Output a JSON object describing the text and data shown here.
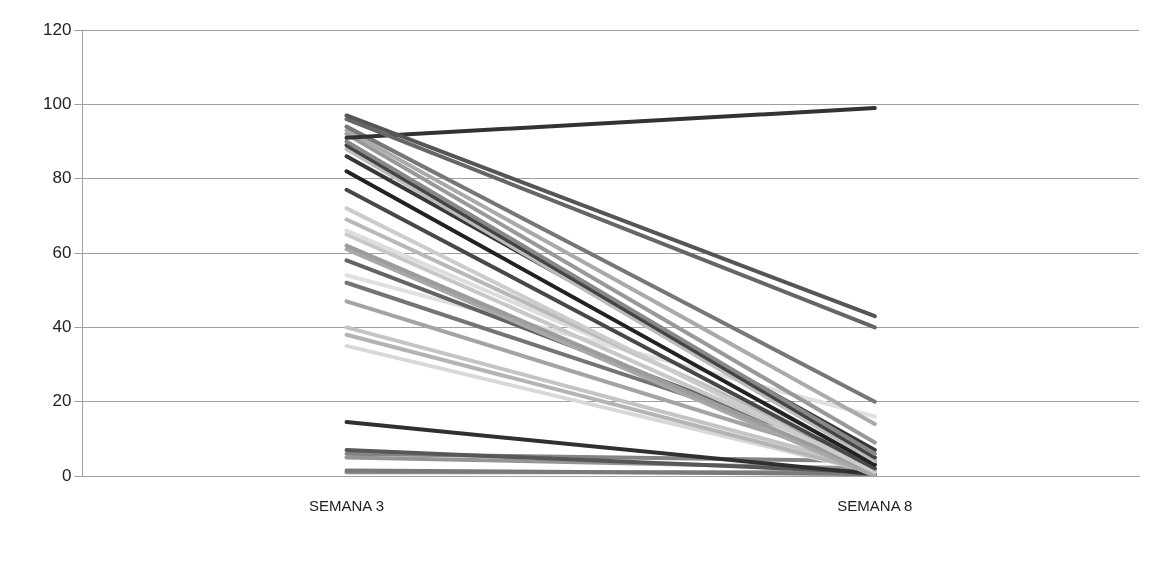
{
  "chart_data": {
    "type": "line",
    "categories": [
      "SEMANA 3",
      "SEMANA 8"
    ],
    "ylim": [
      0,
      120
    ],
    "yticks": [
      0,
      20,
      40,
      60,
      80,
      100,
      120
    ],
    "grid": "y",
    "legend": false,
    "marker": "none",
    "line_style": "solid",
    "series": [
      {
        "color": "#555555",
        "values": [
          97,
          43
        ]
      },
      {
        "color": "#666666",
        "values": [
          96,
          40
        ]
      },
      {
        "color": "#333333",
        "values": [
          91,
          99
        ]
      },
      {
        "color": "#777777",
        "values": [
          94,
          20
        ]
      },
      {
        "color": "#aaaaaa",
        "values": [
          93,
          14
        ]
      },
      {
        "color": "#999999",
        "values": [
          92,
          9
        ]
      },
      {
        "color": "#888888",
        "values": [
          90,
          6
        ]
      },
      {
        "color": "#444444",
        "values": [
          89,
          5
        ]
      },
      {
        "color": "#bbbbbb",
        "values": [
          88,
          4
        ]
      },
      {
        "color": "#383838",
        "values": [
          86,
          7
        ]
      },
      {
        "color": "#222222",
        "values": [
          82,
          3
        ]
      },
      {
        "color": "#484848",
        "values": [
          77,
          2
        ]
      },
      {
        "color": "#cccccc",
        "values": [
          72,
          1
        ]
      },
      {
        "color": "#b8b8b8",
        "values": [
          69,
          3
        ]
      },
      {
        "color": "#dddddd",
        "values": [
          66,
          5
        ]
      },
      {
        "color": "#c8c8c8",
        "values": [
          65,
          2
        ]
      },
      {
        "color": "#9c9c9c",
        "values": [
          62,
          1
        ]
      },
      {
        "color": "#a8a8a8",
        "values": [
          61,
          0
        ]
      },
      {
        "color": "#636363",
        "values": [
          58,
          4
        ]
      },
      {
        "color": "#e0e0e0",
        "values": [
          54,
          16
        ]
      },
      {
        "color": "#747474",
        "values": [
          52,
          5
        ]
      },
      {
        "color": "#a4a4a4",
        "values": [
          47,
          3
        ]
      },
      {
        "color": "#c4c4c4",
        "values": [
          40,
          2
        ]
      },
      {
        "color": "#b4b4b4",
        "values": [
          38,
          1
        ]
      },
      {
        "color": "#d8d8d8",
        "values": [
          35,
          1
        ]
      },
      {
        "color": "#303030",
        "values": [
          14.5,
          0.5
        ]
      },
      {
        "color": "#585858",
        "values": [
          7,
          1
        ]
      },
      {
        "color": "#848484",
        "values": [
          6,
          4
        ]
      },
      {
        "color": "#959595",
        "values": [
          5,
          2
        ]
      },
      {
        "color": "#7a7a7a",
        "values": [
          1.5,
          0.5
        ]
      },
      {
        "color": "#8c8c8c",
        "values": [
          1,
          1
        ]
      }
    ]
  }
}
